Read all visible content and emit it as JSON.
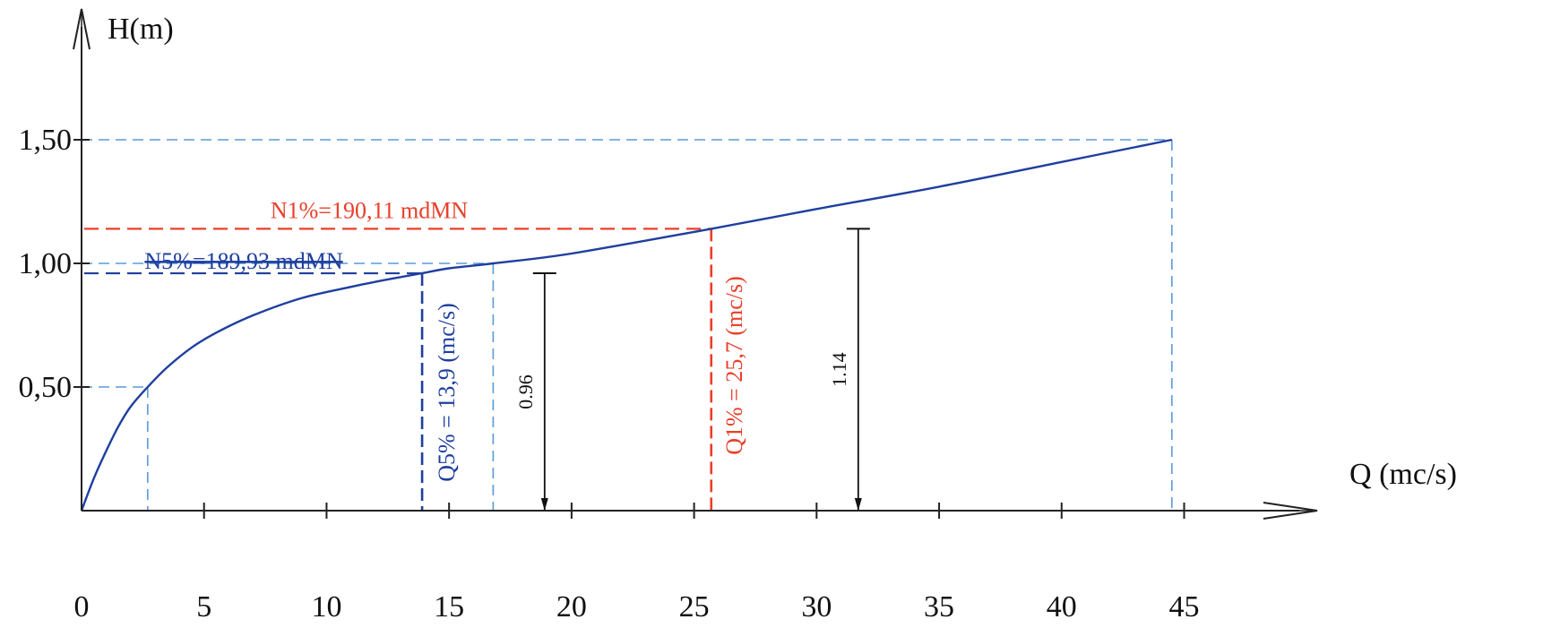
{
  "chart_data": {
    "type": "line",
    "xlabel": "Q (mc/s)",
    "ylabel": "H(m)",
    "xlim": [
      0,
      50
    ],
    "ylim": [
      0,
      1.75
    ],
    "x_ticks": [
      {
        "value": 0,
        "label": "0"
      },
      {
        "value": 5,
        "label": "5"
      },
      {
        "value": 10,
        "label": "10"
      },
      {
        "value": 15,
        "label": "15"
      },
      {
        "value": 20,
        "label": "20"
      },
      {
        "value": 25,
        "label": "25"
      },
      {
        "value": 30,
        "label": "30"
      },
      {
        "value": 35,
        "label": "35"
      },
      {
        "value": 40,
        "label": "40"
      },
      {
        "value": 45,
        "label": "45"
      }
    ],
    "y_ticks": [
      {
        "value": 0.5,
        "label": "0,50"
      },
      {
        "value": 1.0,
        "label": "1,00"
      },
      {
        "value": 1.5,
        "label": "1,50"
      }
    ],
    "series": [
      {
        "color": "#1f3f9f",
        "x": [
          0,
          0.5,
          1.0,
          1.5,
          2.0,
          2.7,
          3.5,
          4.5,
          5.5,
          7.0,
          9.0,
          11.0,
          12.5,
          13.9,
          15.0,
          16.8,
          20.0,
          25.7,
          30.0,
          35.0,
          40.0,
          44.5
        ],
        "y": [
          0,
          0.13,
          0.24,
          0.34,
          0.42,
          0.5,
          0.58,
          0.66,
          0.72,
          0.79,
          0.86,
          0.905,
          0.935,
          0.96,
          0.98,
          1.0,
          1.04,
          1.14,
          1.22,
          1.31,
          1.41,
          1.5
        ]
      }
    ],
    "reference_lines": [
      {
        "x": 2.7,
        "y": 0.5,
        "color": "#5a9ad6"
      },
      {
        "x": 16.8,
        "y": 1.0,
        "color": "#5a9ad6"
      },
      {
        "x": 44.5,
        "y": 1.5,
        "color": "#5a9ad6"
      }
    ],
    "design_levels": [
      {
        "q": 13.9,
        "h": 0.96,
        "color": "#1f3f9f",
        "h_label": "N5%=189,93 mdMN",
        "q_label": "Q5% = 13,9 (mc/s)"
      },
      {
        "q": 25.7,
        "h": 1.14,
        "color": "#e8402a",
        "h_label": "N1%=190,11 mdMN",
        "q_label": "Q1% = 25,7 (mc/s)"
      }
    ],
    "dimensions": [
      {
        "x": 18.9,
        "value": 0.96,
        "label": "0.96",
        "color": "#111111"
      },
      {
        "x": 31.7,
        "value": 1.14,
        "label": "1.14",
        "color": "#111111"
      }
    ]
  }
}
